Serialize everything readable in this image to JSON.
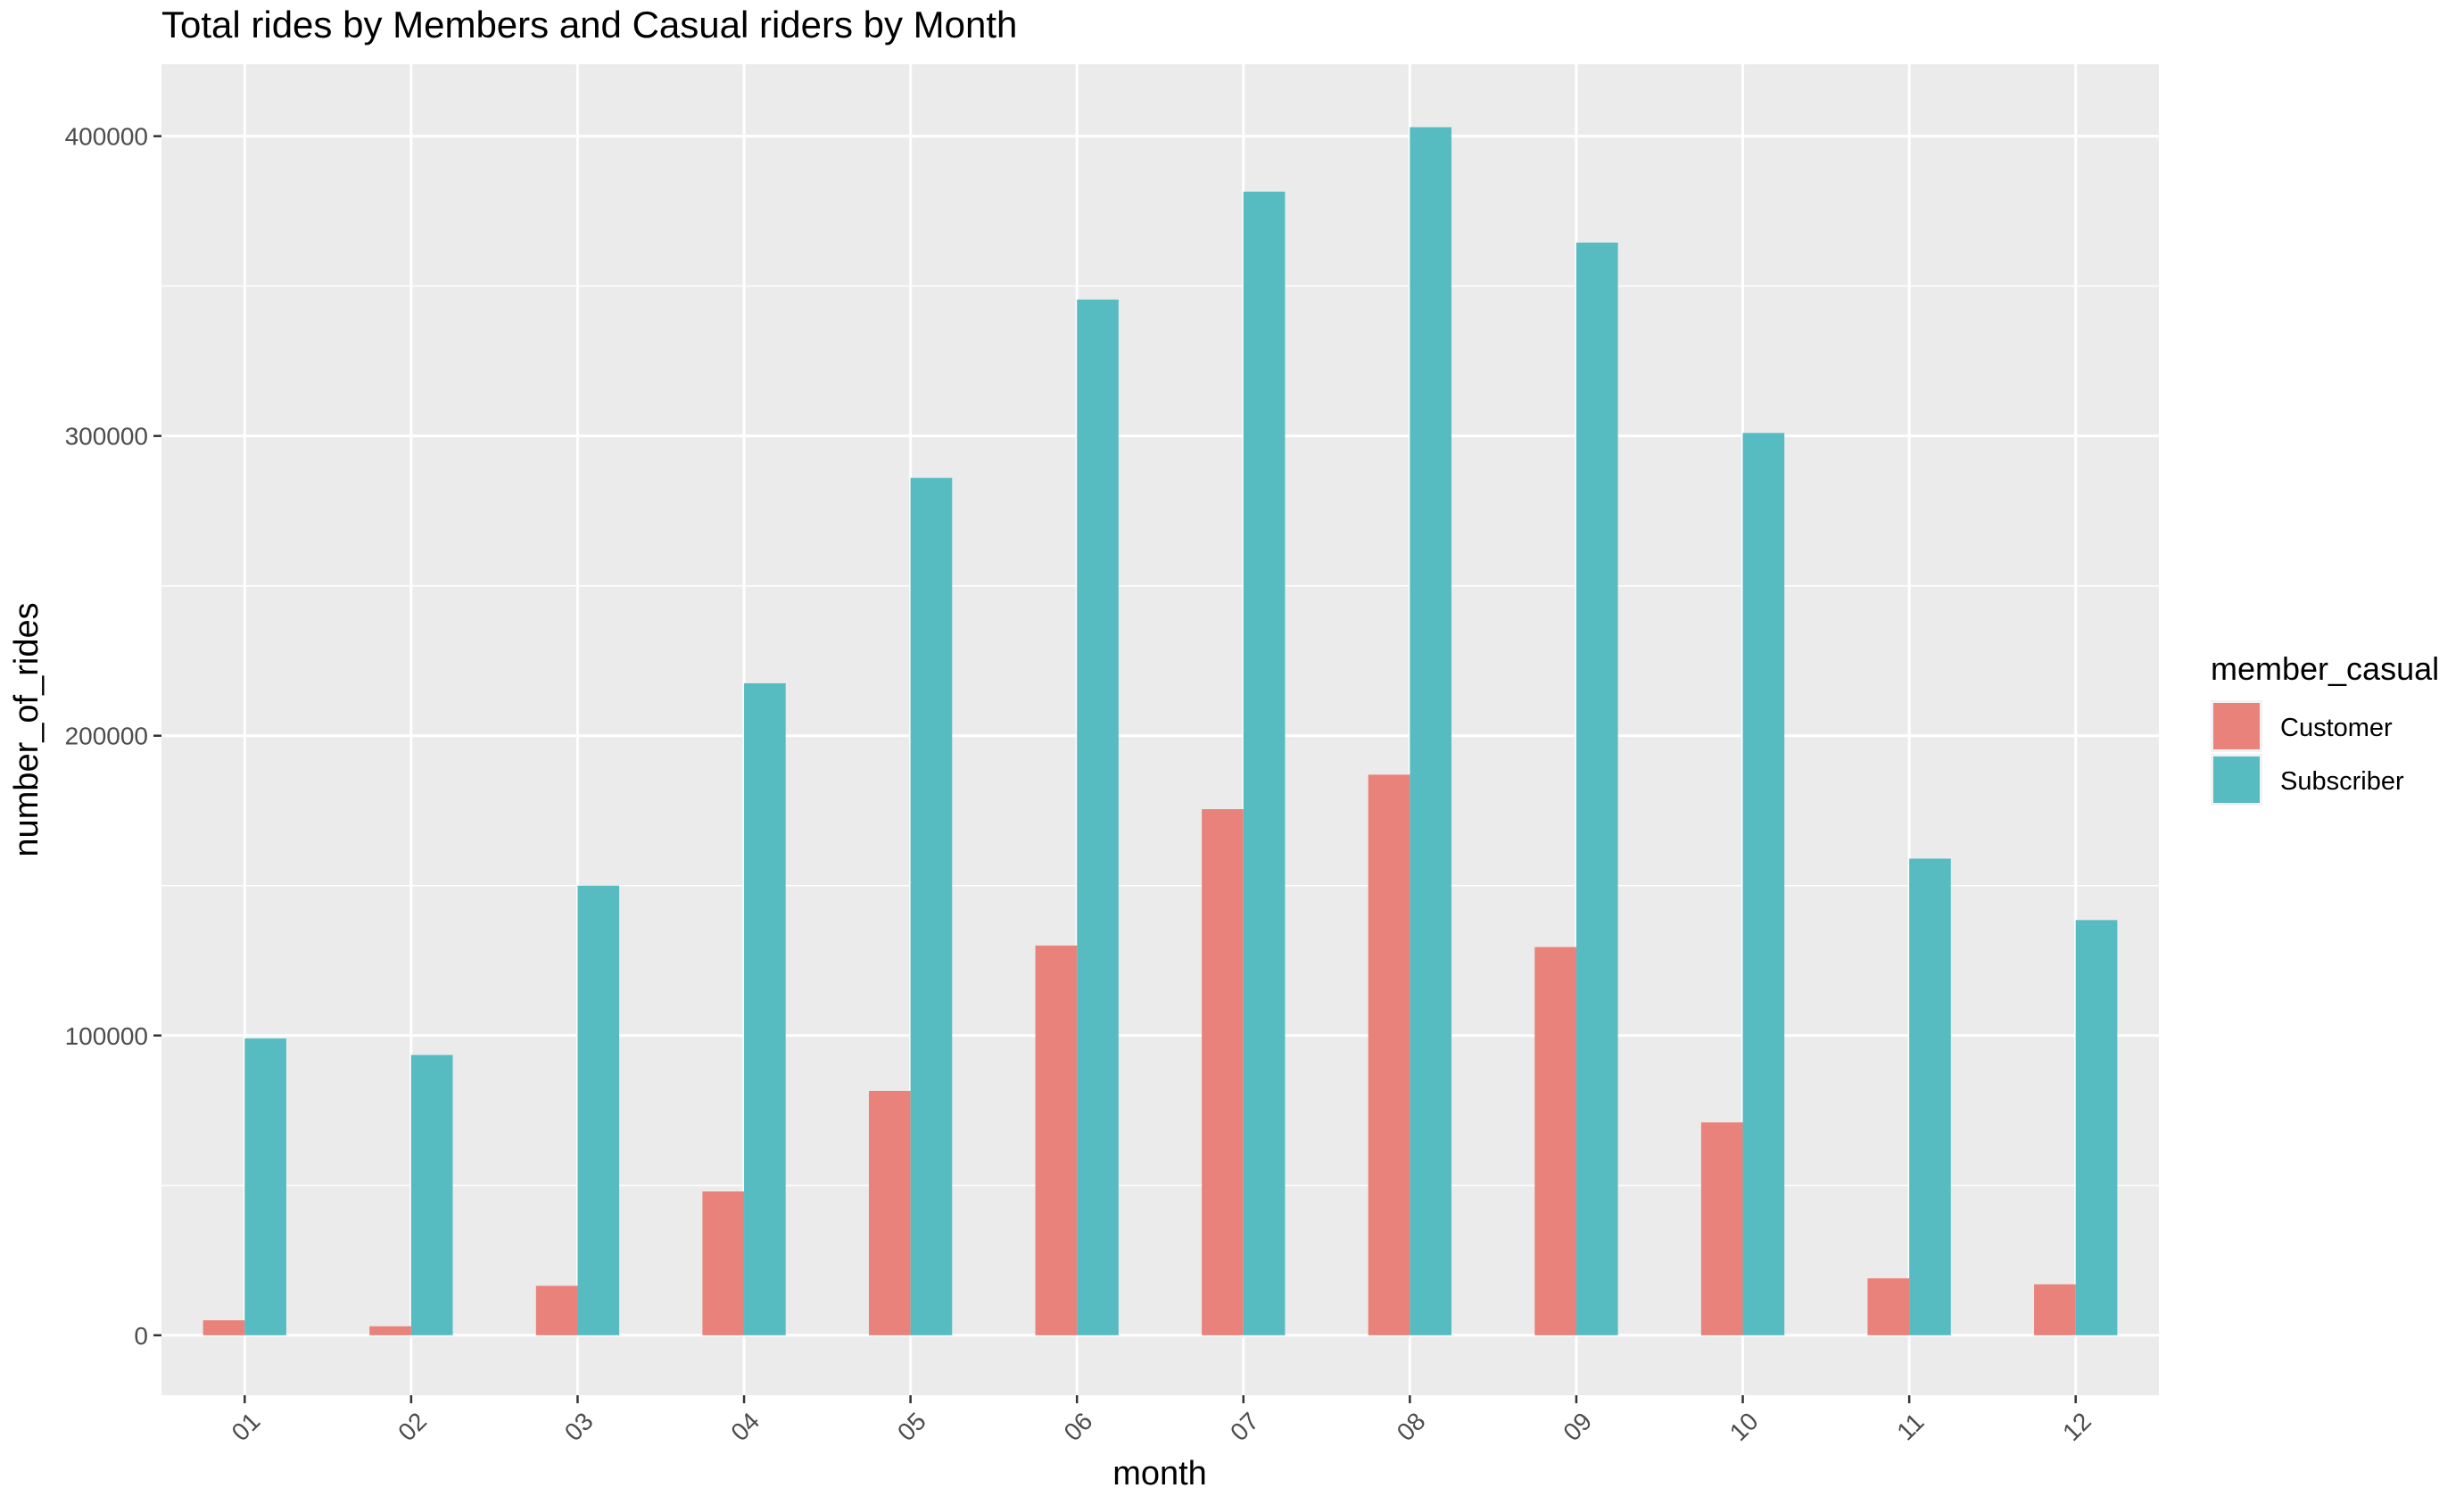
{
  "chart_data": {
    "type": "bar",
    "title": "Total rides by Members and Casual riders by Month",
    "xlabel": "month",
    "ylabel": "number_of_rides",
    "categories": [
      "01",
      "02",
      "03",
      "04",
      "05",
      "06",
      "07",
      "08",
      "09",
      "10",
      "11",
      "12"
    ],
    "series": [
      {
        "name": "Customer",
        "color": "#e8827a",
        "values": [
          5000,
          3000,
          16500,
          48000,
          81500,
          130000,
          175500,
          187000,
          129500,
          71000,
          19000,
          17000
        ]
      },
      {
        "name": "Subscriber",
        "color": "#56bcc2",
        "values": [
          99000,
          93500,
          150000,
          217500,
          286000,
          345500,
          381500,
          403000,
          364500,
          301000,
          159000,
          138500
        ]
      }
    ],
    "yticks": [
      0,
      100000,
      200000,
      300000,
      400000
    ],
    "ytick_labels": [
      "0",
      "100000",
      "200000",
      "300000",
      "400000"
    ],
    "ylim": [
      -20000,
      424000
    ],
    "grid": true,
    "panel_color": "#ebebeb",
    "legend": {
      "title": "member_casual",
      "position": "right"
    }
  }
}
